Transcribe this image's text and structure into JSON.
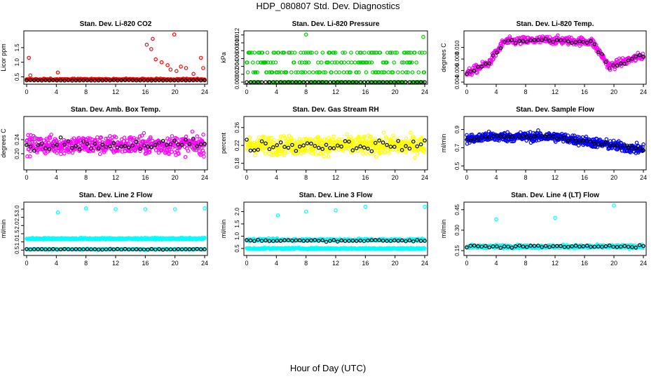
{
  "page": {
    "title": "HDP_080807  Std. Dev. Diagnostics",
    "xlabel": "Hour of Day (UTC)"
  },
  "colors": {
    "axis": "#000000",
    "background": "#ffffff",
    "black_series": "#000000"
  },
  "chart_data": [
    {
      "type": "scatter",
      "title": "Stan. Dev. Li-820 CO2",
      "ylabel": "Licor ppm",
      "color": "#ff0000",
      "xlim": [
        0,
        24
      ],
      "ylim": [
        0.32,
        2.0
      ],
      "xticks": [
        0,
        4,
        8,
        12,
        16,
        20,
        24
      ],
      "yticks": [
        0.5,
        1.0,
        1.5
      ],
      "ytick_labels": [
        "0.5",
        "1.0",
        "1.5"
      ],
      "series": [
        {
          "name": "colored",
          "model": "base",
          "base": 0.4,
          "spread": 0.1,
          "count": 300
        },
        {
          "name": "colored_high",
          "x": [
            0.3,
            0.5,
            4.2,
            16.2,
            16.8,
            17.0,
            17.4,
            18.2,
            19.0,
            19.4,
            20.2,
            20.8,
            21.5,
            22.5,
            23.5,
            23.8
          ],
          "y": [
            1.15,
            0.55,
            0.65,
            1.6,
            1.45,
            1.8,
            1.1,
            1.0,
            0.9,
            0.75,
            0.7,
            0.85,
            0.8,
            0.6,
            1.15,
            0.8
          ]
        },
        {
          "name": "black",
          "model": "black",
          "base": 0.38,
          "spread": 0.04,
          "count": 48
        }
      ],
      "outliers": [
        {
          "x": 19.9,
          "y": 1.95
        }
      ]
    },
    {
      "type": "scatter",
      "title": "Stan. Dev. Li-820 Pressure",
      "ylabel": "kPa",
      "color": "#00cc00",
      "xlim": [
        0,
        24
      ],
      "ylim": [
        0.0,
        0.0125
      ],
      "xticks": [
        0,
        4,
        8,
        12,
        16,
        20,
        24
      ],
      "yticks": [
        0.0,
        0.002,
        0.004,
        0.006,
        0.008,
        0.01,
        0.012
      ],
      "ytick_labels": [
        "0.000",
        "0.002",
        "0.004",
        "0.006",
        "0.008",
        "0.010",
        "0.012"
      ],
      "series": [
        {
          "name": "colored",
          "model": "quantized",
          "levels": [
            0,
            0.0025,
            0.005,
            0.0075
          ],
          "count": 320
        },
        {
          "name": "black",
          "model": "zero",
          "base": 0.0,
          "spread": 0.0,
          "count": 48
        }
      ],
      "outliers": [
        {
          "x": 8.0,
          "y": 0.0121
        },
        {
          "x": 23.8,
          "y": 0.0115
        }
      ]
    },
    {
      "type": "scatter",
      "title": "Stan. Dev. Li-820 Temp.",
      "ylabel": "degrees C",
      "color": "#ff00ff",
      "xlim": [
        0,
        24
      ],
      "ylim": [
        0.004,
        0.0125
      ],
      "xticks": [
        0,
        4,
        8,
        12,
        16,
        20,
        24
      ],
      "yticks": [
        0.004,
        0.006,
        0.008,
        0.01
      ],
      "ytick_labels": [
        "0.004",
        "0.006",
        "0.008",
        "0.010"
      ],
      "series": [
        {
          "name": "colored",
          "model": "temp",
          "count": 420
        },
        {
          "name": "black",
          "model": "temp_black",
          "count": 48
        }
      ],
      "outliers": []
    },
    {
      "type": "scatter",
      "title": "Stan. Dev. Amb. Box Temp.",
      "ylabel": "degrees C",
      "color": "#ff00ff",
      "xlim": [
        0,
        24
      ],
      "ylim": [
        0.16,
        0.3
      ],
      "xticks": [
        0,
        4,
        8,
        12,
        16,
        20,
        24
      ],
      "yticks": [
        0.2,
        0.24
      ],
      "ytick_labels": [
        "0.20",
        "0.24"
      ],
      "series": [
        {
          "name": "colored",
          "model": "band",
          "base": 0.225,
          "spread": 0.045,
          "count": 520
        },
        {
          "name": "black",
          "model": "band",
          "base": 0.225,
          "spread": 0.03,
          "count": 48
        }
      ],
      "outliers": []
    },
    {
      "type": "scatter",
      "title": "Stan. Dev. Gas Stream RH",
      "ylabel": "percent",
      "color": "#ffff00",
      "xlim": [
        0,
        24
      ],
      "ylim": [
        0.17,
        0.28
      ],
      "xticks": [
        0,
        4,
        8,
        12,
        16,
        20,
        24
      ],
      "yticks": [
        0.18,
        0.22,
        0.26
      ],
      "ytick_labels": [
        "0.18",
        "0.22",
        "0.26"
      ],
      "series": [
        {
          "name": "colored",
          "model": "band",
          "base": 0.22,
          "spread": 0.035,
          "count": 560
        },
        {
          "name": "black",
          "model": "band",
          "base": 0.22,
          "spread": 0.022,
          "count": 48
        }
      ],
      "outliers": []
    },
    {
      "type": "scatter",
      "title": "Stan. Dev. Sample Flow",
      "ylabel": "ml/min",
      "color": "#0000ff",
      "xlim": [
        0,
        24
      ],
      "ylim": [
        0.48,
        1.02
      ],
      "xticks": [
        0,
        4,
        8,
        12,
        16,
        20,
        24
      ],
      "yticks": [
        0.5,
        0.7,
        0.9
      ],
      "ytick_labels": [
        "0.5",
        "0.7",
        "0.9"
      ],
      "series": [
        {
          "name": "colored",
          "model": "sample",
          "count": 560
        },
        {
          "name": "black",
          "model": "sample_black",
          "count": 48
        }
      ],
      "outliers": []
    },
    {
      "type": "scatter",
      "title": "Stan. Dev. Line 2 Flow",
      "ylabel": "ml/min",
      "color": "#00ffff",
      "xlim": [
        0,
        24
      ],
      "ylim": [
        0.3,
        3.3
      ],
      "xticks": [
        0,
        4,
        8,
        12,
        16,
        20,
        24
      ],
      "yticks": [
        0.5,
        1.0,
        1.5,
        2.0,
        2.5,
        3.0
      ],
      "ytick_labels": [
        "0.5",
        "1.0",
        "1.5",
        "2.0",
        "2.5",
        "3.0"
      ],
      "series": [
        {
          "name": "colored",
          "model": "band",
          "base": 1.2,
          "spread": 0.08,
          "count": 420
        },
        {
          "name": "colored_low",
          "model": "band",
          "base": 0.55,
          "spread": 0.05,
          "count": 200
        },
        {
          "name": "black",
          "model": "band",
          "base": 0.55,
          "spread": 0.04,
          "count": 48
        }
      ],
      "outliers": [
        {
          "x": 4.2,
          "y": 2.8
        },
        {
          "x": 8.0,
          "y": 3.05
        },
        {
          "x": 12.0,
          "y": 3.0
        },
        {
          "x": 16.0,
          "y": 3.0
        },
        {
          "x": 20.0,
          "y": 3.0
        },
        {
          "x": 24.0,
          "y": 3.05
        }
      ]
    },
    {
      "type": "scatter",
      "title": "Stan. Dev. Line 3 Flow",
      "ylabel": "ml/min",
      "color": "#00ffff",
      "xlim": [
        0,
        24
      ],
      "ylim": [
        0.3,
        2.3
      ],
      "xticks": [
        0,
        4,
        8,
        12,
        16,
        20,
        24
      ],
      "yticks": [
        0.5,
        1.0,
        1.5,
        2.0
      ],
      "ytick_labels": [
        "0.5",
        "1.0",
        "1.5",
        "2.0"
      ],
      "series": [
        {
          "name": "colored",
          "model": "band",
          "base": 0.85,
          "spread": 0.08,
          "count": 400
        },
        {
          "name": "colored_low",
          "model": "band",
          "base": 0.5,
          "spread": 0.05,
          "count": 260
        },
        {
          "name": "black",
          "model": "band",
          "base": 0.82,
          "spread": 0.06,
          "count": 48
        }
      ],
      "outliers": [
        {
          "x": 4.2,
          "y": 1.85
        },
        {
          "x": 8.0,
          "y": 2.0
        },
        {
          "x": 12.0,
          "y": 2.05
        },
        {
          "x": 16.0,
          "y": 2.2
        },
        {
          "x": 24.0,
          "y": 2.2
        }
      ]
    },
    {
      "type": "scatter",
      "title": "Stan. Dev. Line 4 (LT) Flow",
      "ylabel": "ml/min",
      "color": "#00ffff",
      "xlim": [
        0,
        24
      ],
      "ylim": [
        0.13,
        0.49
      ],
      "xticks": [
        0,
        4,
        8,
        12,
        16,
        20,
        24
      ],
      "yticks": [
        0.15,
        0.3,
        0.45
      ],
      "ytick_labels": [
        "0.15",
        "0.30",
        "0.45"
      ],
      "series": [
        {
          "name": "colored",
          "model": "band",
          "base": 0.18,
          "spread": 0.02,
          "count": 460
        },
        {
          "name": "black",
          "model": "band",
          "base": 0.18,
          "spread": 0.015,
          "count": 48
        }
      ],
      "outliers": [
        {
          "x": 4.0,
          "y": 0.38
        },
        {
          "x": 12.0,
          "y": 0.39
        },
        {
          "x": 20.0,
          "y": 0.48
        }
      ]
    }
  ]
}
